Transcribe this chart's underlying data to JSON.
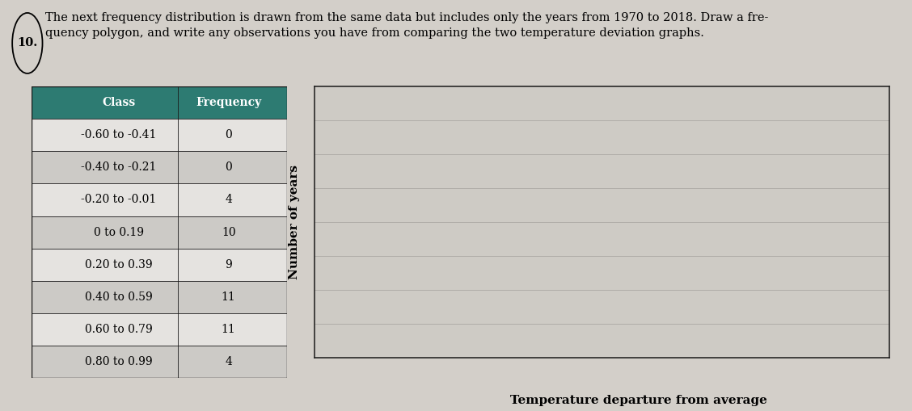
{
  "problem_number": "10.",
  "problem_line1": "The next frequency distribution is drawn from the same data but includes only the years from 1970 to 2018. Draw a fre-",
  "problem_line2": "quency polygon, and write any observations you have from comparing the two temperature deviation graphs.",
  "table_header": [
    "Class",
    "Frequency"
  ],
  "table_data": [
    [
      "-0.60 to -0.41",
      "0"
    ],
    [
      "-0.40 to -0.21",
      "0"
    ],
    [
      "-0.20 to -0.01",
      "4"
    ],
    [
      "0 to 0.19",
      "10"
    ],
    [
      "0.20 to 0.39",
      "9"
    ],
    [
      "0.40 to 0.59",
      "11"
    ],
    [
      "0.60 to 0.79",
      "11"
    ],
    [
      "0.80 to 0.99",
      "4"
    ]
  ],
  "ylabel": "Number of years",
  "xlabel": "Temperature departure from average",
  "background_color": "#d3cfc9",
  "table_header_bg": "#2d7b72",
  "table_header_fg": "#ffffff",
  "table_row_light_bg": "#e5e3e0",
  "table_row_dark_bg": "#cccac6",
  "graph_inner_bg": "#cecbc5",
  "grid_color": "#b0ada8",
  "border_color": "#1a1a1a",
  "num_grid_lines": 7,
  "text_fontsize": 10.5,
  "table_fontsize": 10,
  "label_fontsize": 11
}
